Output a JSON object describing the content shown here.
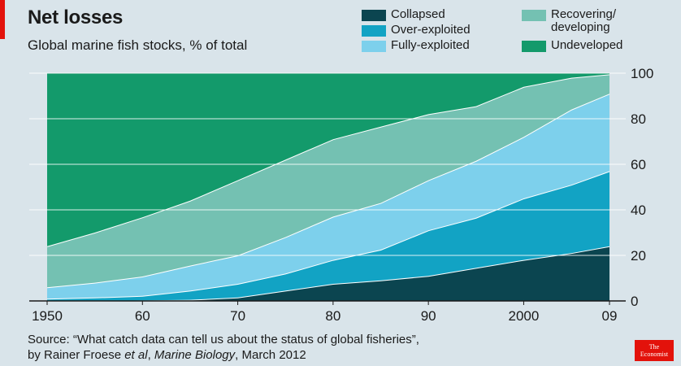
{
  "header": {
    "title": "Net losses",
    "subtitle": "Global marine fish stocks, % of total"
  },
  "source": {
    "prefix": "Source: “What catch data can tell us about the status of global fisheries”,",
    "authors_prefix": "by Rainer Froese ",
    "et_al": "et al",
    "comma": ", ",
    "journal": "Marine Biology",
    "date": ", March 2012"
  },
  "logo": {
    "line1": "The",
    "line2": "Economist"
  },
  "colors": {
    "background": "#d9e4ea",
    "collapsed": "#0b4550",
    "over_exploited": "#12a3c4",
    "fully_exploited": "#7dd0ec",
    "recovering": "#74c1b2",
    "undeveloped": "#139a6b",
    "accent": "#e3120b"
  },
  "chart_data": {
    "type": "area",
    "stacked": true,
    "x": [
      1950,
      1955,
      1960,
      1965,
      1970,
      1975,
      1980,
      1985,
      1990,
      1995,
      2000,
      2005,
      2009
    ],
    "series": [
      {
        "name": "Collapsed",
        "values": [
          0,
          0,
          0.2,
          0.5,
          1.5,
          4.5,
          7.5,
          9,
          11,
          14.5,
          18,
          21,
          24
        ]
      },
      {
        "name": "Over-exploited",
        "values": [
          1,
          1.5,
          2,
          4,
          6,
          7.5,
          10.5,
          13.5,
          20,
          22,
          27,
          30,
          33
        ]
      },
      {
        "name": "Fully-exploited",
        "values": [
          5,
          6.5,
          8.5,
          11,
          12.5,
          16,
          19,
          20.5,
          22,
          25,
          27,
          33,
          34
        ]
      },
      {
        "name": "Recovering/ developing",
        "values": [
          18,
          22,
          26,
          28.5,
          33,
          34,
          34,
          33.5,
          29,
          24,
          22,
          14,
          8.5
        ]
      },
      {
        "name": "Undeveloped",
        "values": [
          76,
          70,
          63.3,
          56,
          47,
          38,
          29,
          23.5,
          18,
          14.5,
          6,
          2,
          0.5
        ]
      }
    ],
    "ylim": [
      0,
      100
    ],
    "yticks": [
      0,
      20,
      40,
      60,
      80,
      100
    ],
    "xticks": [
      1950,
      1960,
      1970,
      1980,
      1990,
      2000,
      2009
    ],
    "xtick_labels": [
      "1950",
      "60",
      "70",
      "80",
      "90",
      "2000",
      "09"
    ],
    "ytick_side": "right",
    "legend_position": "top-right",
    "grid": true
  }
}
